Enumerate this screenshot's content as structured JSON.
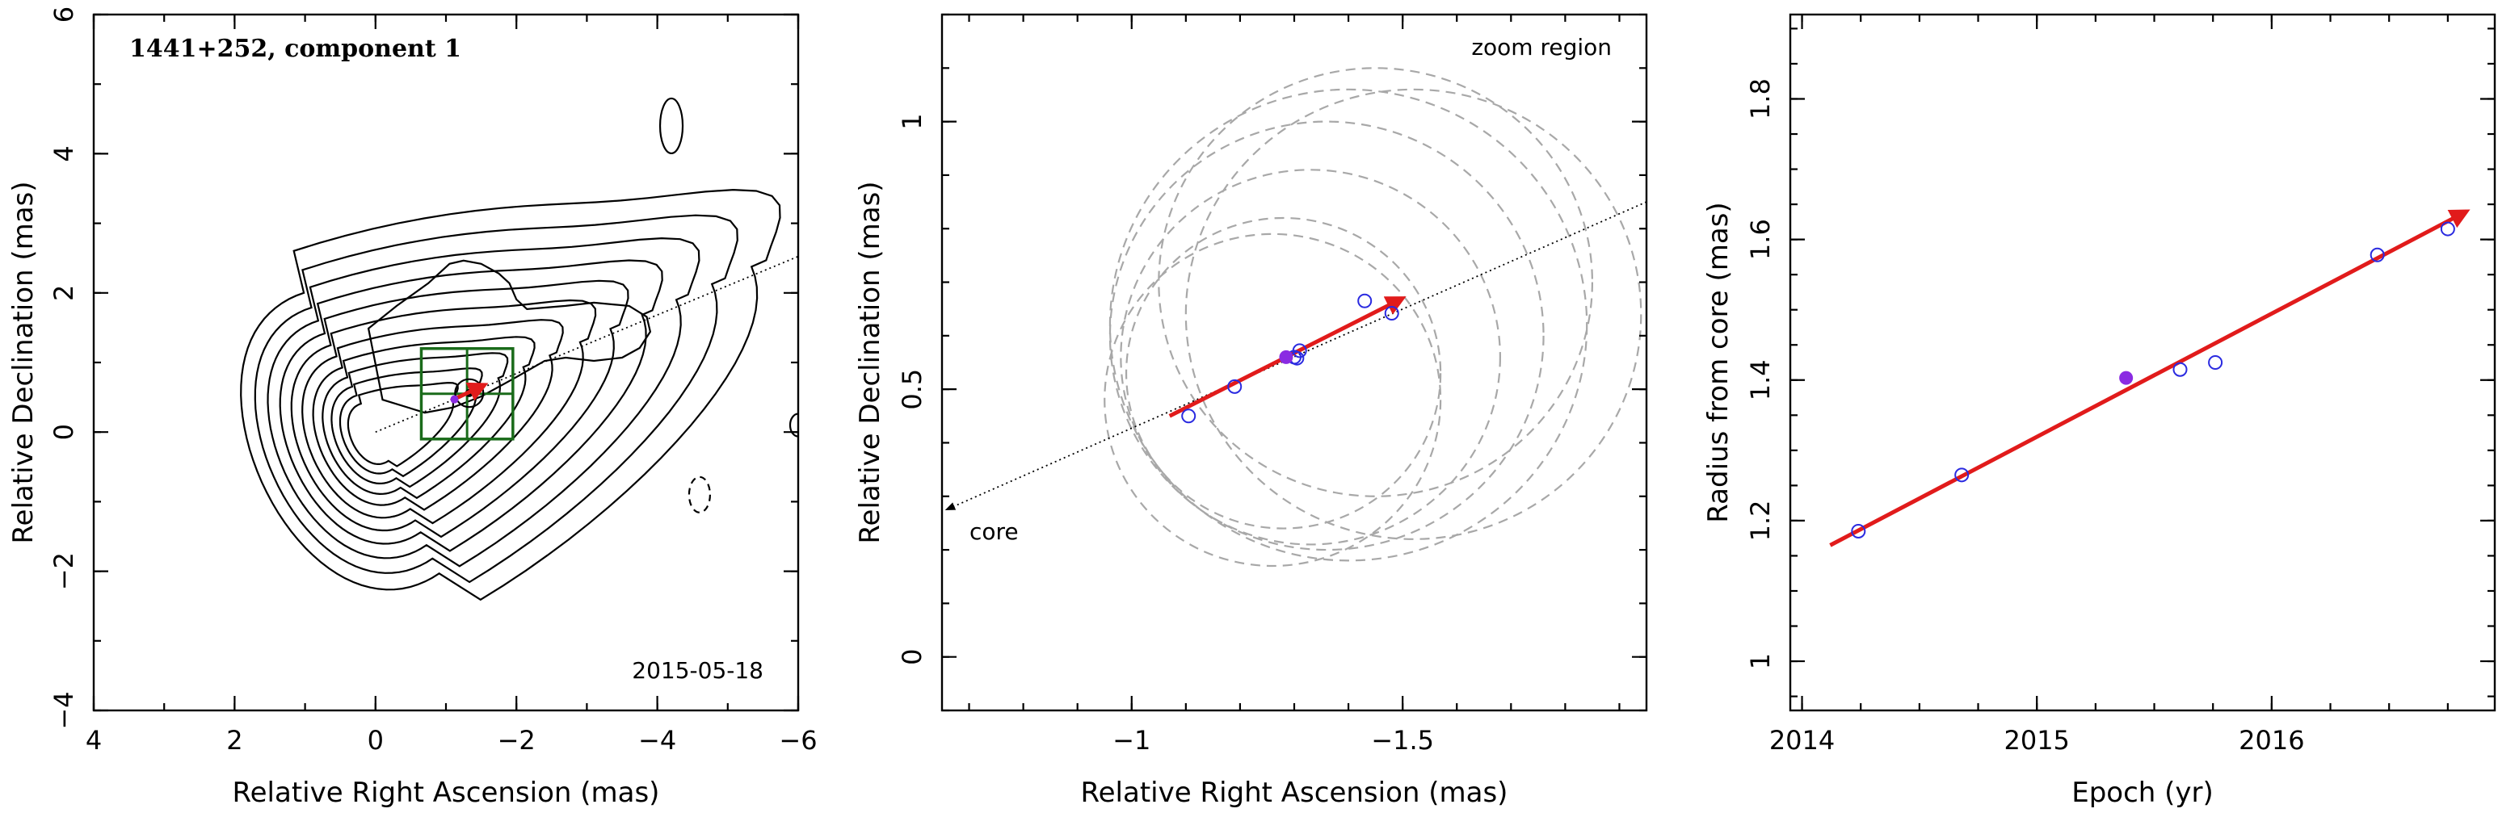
{
  "chart_data": [
    {
      "type": "contour",
      "title": "1441+252, component 1",
      "date_label": "2015-05-18",
      "xlabel": "Relative Right Ascension (mas)",
      "ylabel": "Relative Declination (mas)",
      "xlim": [
        4,
        -6
      ],
      "ylim": [
        -4,
        6
      ],
      "xticks": [
        4,
        2,
        0,
        -2,
        -4,
        -6
      ],
      "yticks": [
        -4,
        -2,
        0,
        2,
        4,
        6
      ],
      "core": {
        "x": 0,
        "y": 0
      },
      "component": {
        "x": -1.33,
        "y": 0.56,
        "radius": 0.2
      },
      "zoom_box": {
        "x": [
          -0.65,
          -1.95
        ],
        "y": [
          -0.1,
          1.2
        ]
      },
      "motion_arrow": {
        "from": [
          -1.07,
          0.45
        ],
        "to": [
          -1.55,
          0.68
        ]
      },
      "jet_axis_angle_deg": 66,
      "contour_scales": [
        0.58,
        0.75,
        0.93,
        1.12,
        1.32,
        1.55,
        1.78,
        2.02,
        2.28,
        2.55,
        2.85
      ]
    },
    {
      "type": "scatter",
      "annotations": [
        "zoom region",
        "core"
      ],
      "xlabel": "Relative Right Ascension (mas)",
      "ylabel": "Relative Declination (mas)",
      "xlim": [
        -0.65,
        -1.95
      ],
      "ylim": [
        -0.1,
        1.2
      ],
      "xticks": [
        -1,
        -1.5
      ],
      "yticks": [
        0,
        0.5,
        1
      ],
      "points": [
        {
          "x": -1.105,
          "y": 0.45
        },
        {
          "x": -1.19,
          "y": 0.505
        },
        {
          "x": -1.3,
          "y": 0.56
        },
        {
          "x": -1.305,
          "y": 0.558
        },
        {
          "x": -1.31,
          "y": 0.572
        },
        {
          "x": -1.43,
          "y": 0.665
        },
        {
          "x": -1.48,
          "y": 0.642
        }
      ],
      "filled_point": {
        "x": -1.285,
        "y": 0.56
      },
      "error_ellipses": [
        {
          "cx": -1.28,
          "cy": 0.53,
          "r": 0.29
        },
        {
          "cx": -1.36,
          "cy": 0.6,
          "r": 0.4
        },
        {
          "cx": -1.45,
          "cy": 0.7,
          "r": 0.4
        },
        {
          "cx": -1.33,
          "cy": 0.56,
          "r": 0.35
        },
        {
          "cx": -1.52,
          "cy": 0.64,
          "r": 0.42
        },
        {
          "cx": -1.4,
          "cy": 0.62,
          "r": 0.44
        },
        {
          "cx": -1.26,
          "cy": 0.48,
          "r": 0.31
        }
      ],
      "motion_arrow": {
        "from": [
          -1.07,
          0.45
        ],
        "to": [
          -1.5,
          0.67
        ]
      },
      "jet_axis": {
        "from": [
          -0.65,
          0.28
        ],
        "to": [
          -1.95,
          0.85
        ]
      }
    },
    {
      "type": "scatter",
      "xlabel": "Epoch (yr)",
      "ylabel": "Radius from core (mas)",
      "xlim": [
        2013.95,
        2016.95
      ],
      "ylim": [
        0.93,
        1.92
      ],
      "xticks": [
        2014,
        2015,
        2016
      ],
      "yticks": [
        1,
        1.2,
        1.4,
        1.6,
        1.8
      ],
      "x": [
        2014.24,
        2014.68,
        2015.61,
        2015.76,
        2016.45,
        2016.75
      ],
      "y": [
        1.185,
        1.265,
        1.415,
        1.425,
        1.578,
        1.615
      ],
      "filled_point": {
        "x": 2015.38,
        "y": 1.403
      },
      "fit_line": {
        "x": [
          2014.12,
          2016.83
        ],
        "y": [
          1.165,
          1.64
        ]
      }
    }
  ]
}
